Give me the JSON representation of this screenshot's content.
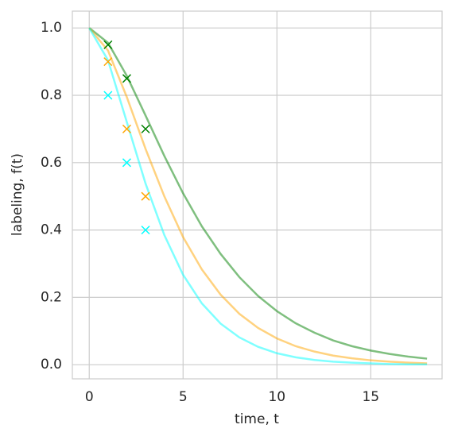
{
  "chart_data": {
    "type": "line",
    "xlabel": "time, t",
    "ylabel": "labeling, f(t)",
    "xlim": [
      -0.9,
      18.8
    ],
    "ylim": [
      -0.042,
      1.05
    ],
    "xticks": [
      0,
      5,
      10,
      15
    ],
    "yticks": [
      {
        "value": 0,
        "label": "0.0"
      },
      0.2,
      0.4,
      0.6,
      0.8,
      {
        "value": 1,
        "label": "1.0"
      }
    ],
    "grid": true,
    "line_opacity": 0.5,
    "x": [
      0,
      1,
      2,
      3,
      4,
      5,
      6,
      7,
      8,
      9,
      10,
      11,
      12,
      13,
      14,
      15,
      16,
      17,
      18
    ],
    "series": [
      {
        "color": "#008000",
        "values": [
          1,
          0.956,
          0.858,
          0.74,
          0.62,
          0.509,
          0.411,
          0.329,
          0.26,
          0.204,
          0.159,
          0.123,
          0.095,
          0.072,
          0.055,
          0.042,
          0.032,
          0.024,
          0.018
        ]
      },
      {
        "color": "#ffa500",
        "values": [
          1,
          0.933,
          0.795,
          0.641,
          0.5,
          0.379,
          0.283,
          0.208,
          0.151,
          0.109,
          0.078,
          0.055,
          0.039,
          0.027,
          0.019,
          0.013,
          0.009,
          0.006,
          0.004
        ]
      },
      {
        "color": "#00ffff",
        "values": [
          1,
          0.904,
          0.721,
          0.538,
          0.385,
          0.267,
          0.182,
          0.122,
          0.081,
          0.053,
          0.034,
          0.022,
          0.014,
          0.009,
          0.006,
          0.004,
          0.002,
          0.001,
          0.001
        ]
      }
    ],
    "markers": [
      {
        "color": "#008000",
        "x": [
          1,
          2,
          3
        ],
        "values": [
          0.95,
          0.85,
          0.7
        ]
      },
      {
        "color": "#ffa500",
        "x": [
          1,
          2,
          3
        ],
        "values": [
          0.9,
          0.7,
          0.5
        ]
      },
      {
        "color": "#00ffff",
        "x": [
          1,
          2,
          3
        ],
        "values": [
          0.8,
          0.6,
          0.4
        ]
      }
    ]
  }
}
